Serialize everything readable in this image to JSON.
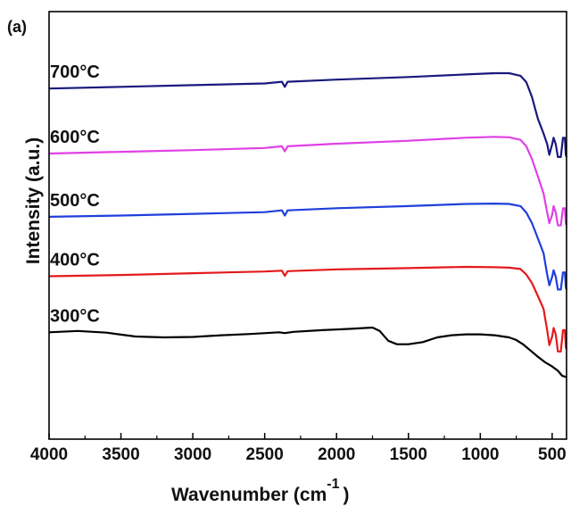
{
  "panel_label": "(a)",
  "chart_data": {
    "type": "line",
    "xlabel": "Wavenumber (cm",
    "xlabel_superscript": "-1",
    "xlabel_close": ")",
    "ylabel": "Intensity (a.u.)",
    "xlim": [
      4000,
      400
    ],
    "x_reversed": true,
    "ylim": [
      0,
      1
    ],
    "y_ticks_shown": false,
    "x_ticks": [
      4000,
      3500,
      3000,
      2500,
      2000,
      1500,
      1000,
      500
    ],
    "x_tick_labels": [
      "4000",
      "3500",
      "3000",
      "2500",
      "2000",
      "1500",
      "1000",
      "500"
    ],
    "grid": false,
    "legend": "none",
    "series": [
      {
        "name": "300°C",
        "color": "#000000",
        "points": [
          [
            4000,
            0.25
          ],
          [
            3800,
            0.253
          ],
          [
            3600,
            0.249
          ],
          [
            3400,
            0.24
          ],
          [
            3200,
            0.238
          ],
          [
            3000,
            0.239
          ],
          [
            2800,
            0.243
          ],
          [
            2600,
            0.246
          ],
          [
            2400,
            0.25
          ],
          [
            2360,
            0.248
          ],
          [
            2300,
            0.251
          ],
          [
            2100,
            0.255
          ],
          [
            1900,
            0.258
          ],
          [
            1750,
            0.261
          ],
          [
            1700,
            0.253
          ],
          [
            1640,
            0.23
          ],
          [
            1580,
            0.222
          ],
          [
            1500,
            0.222
          ],
          [
            1400,
            0.227
          ],
          [
            1300,
            0.238
          ],
          [
            1200,
            0.243
          ],
          [
            1100,
            0.245
          ],
          [
            1000,
            0.245
          ],
          [
            900,
            0.243
          ],
          [
            800,
            0.238
          ],
          [
            750,
            0.232
          ],
          [
            700,
            0.221
          ],
          [
            650,
            0.207
          ],
          [
            600,
            0.193
          ],
          [
            550,
            0.18
          ],
          [
            500,
            0.17
          ],
          [
            460,
            0.16
          ],
          [
            430,
            0.148
          ],
          [
            400,
            0.145
          ]
        ]
      },
      {
        "name": "400°C",
        "color": "#e41a1c",
        "points": [
          [
            4000,
            0.381
          ],
          [
            3500,
            0.384
          ],
          [
            3000,
            0.388
          ],
          [
            2500,
            0.392
          ],
          [
            2380,
            0.394
          ],
          [
            2360,
            0.382
          ],
          [
            2340,
            0.393
          ],
          [
            2000,
            0.397
          ],
          [
            1500,
            0.4
          ],
          [
            1100,
            0.403
          ],
          [
            900,
            0.402
          ],
          [
            800,
            0.401
          ],
          [
            720,
            0.398
          ],
          [
            680,
            0.385
          ],
          [
            640,
            0.365
          ],
          [
            600,
            0.335
          ],
          [
            560,
            0.305
          ],
          [
            535,
            0.255
          ],
          [
            520,
            0.22
          ],
          [
            500,
            0.24
          ],
          [
            490,
            0.26
          ],
          [
            475,
            0.245
          ],
          [
            460,
            0.205
          ],
          [
            440,
            0.205
          ],
          [
            425,
            0.255
          ],
          [
            412,
            0.255
          ],
          [
            405,
            0.215
          ],
          [
            400,
            0.21
          ]
        ]
      },
      {
        "name": "500°C",
        "color": "#1f3fdc",
        "points": [
          [
            4000,
            0.52
          ],
          [
            3500,
            0.523
          ],
          [
            3000,
            0.527
          ],
          [
            2500,
            0.531
          ],
          [
            2380,
            0.535
          ],
          [
            2360,
            0.523
          ],
          [
            2340,
            0.535
          ],
          [
            2000,
            0.54
          ],
          [
            1500,
            0.545
          ],
          [
            1100,
            0.55
          ],
          [
            900,
            0.551
          ],
          [
            800,
            0.55
          ],
          [
            720,
            0.545
          ],
          [
            680,
            0.53
          ],
          [
            640,
            0.505
          ],
          [
            600,
            0.47
          ],
          [
            560,
            0.435
          ],
          [
            535,
            0.385
          ],
          [
            520,
            0.36
          ],
          [
            500,
            0.38
          ],
          [
            490,
            0.395
          ],
          [
            475,
            0.38
          ],
          [
            460,
            0.35
          ],
          [
            440,
            0.35
          ],
          [
            425,
            0.39
          ],
          [
            412,
            0.39
          ],
          [
            405,
            0.355
          ],
          [
            400,
            0.35
          ]
        ]
      },
      {
        "name": "600°C",
        "color": "#e040e6",
        "points": [
          [
            4000,
            0.668
          ],
          [
            3500,
            0.672
          ],
          [
            3000,
            0.676
          ],
          [
            2500,
            0.681
          ],
          [
            2380,
            0.685
          ],
          [
            2360,
            0.673
          ],
          [
            2340,
            0.685
          ],
          [
            2000,
            0.691
          ],
          [
            1500,
            0.698
          ],
          [
            1100,
            0.705
          ],
          [
            900,
            0.707
          ],
          [
            800,
            0.706
          ],
          [
            720,
            0.7
          ],
          [
            680,
            0.685
          ],
          [
            640,
            0.655
          ],
          [
            600,
            0.615
          ],
          [
            560,
            0.575
          ],
          [
            535,
            0.53
          ],
          [
            520,
            0.505
          ],
          [
            500,
            0.525
          ],
          [
            490,
            0.545
          ],
          [
            475,
            0.53
          ],
          [
            460,
            0.5
          ],
          [
            440,
            0.5
          ],
          [
            425,
            0.54
          ],
          [
            412,
            0.54
          ],
          [
            405,
            0.505
          ],
          [
            400,
            0.5
          ]
        ]
      },
      {
        "name": "700°C",
        "color": "#1a1a7e",
        "points": [
          [
            4000,
            0.82
          ],
          [
            3500,
            0.824
          ],
          [
            3000,
            0.828
          ],
          [
            2500,
            0.832
          ],
          [
            2380,
            0.836
          ],
          [
            2360,
            0.824
          ],
          [
            2340,
            0.836
          ],
          [
            2000,
            0.841
          ],
          [
            1500,
            0.847
          ],
          [
            1100,
            0.853
          ],
          [
            900,
            0.856
          ],
          [
            800,
            0.856
          ],
          [
            720,
            0.85
          ],
          [
            680,
            0.835
          ],
          [
            640,
            0.8
          ],
          [
            600,
            0.75
          ],
          [
            560,
            0.715
          ],
          [
            535,
            0.69
          ],
          [
            520,
            0.665
          ],
          [
            500,
            0.69
          ],
          [
            490,
            0.705
          ],
          [
            475,
            0.69
          ],
          [
            460,
            0.66
          ],
          [
            440,
            0.66
          ],
          [
            425,
            0.705
          ],
          [
            412,
            0.705
          ],
          [
            405,
            0.665
          ],
          [
            400,
            0.66
          ]
        ]
      }
    ]
  }
}
